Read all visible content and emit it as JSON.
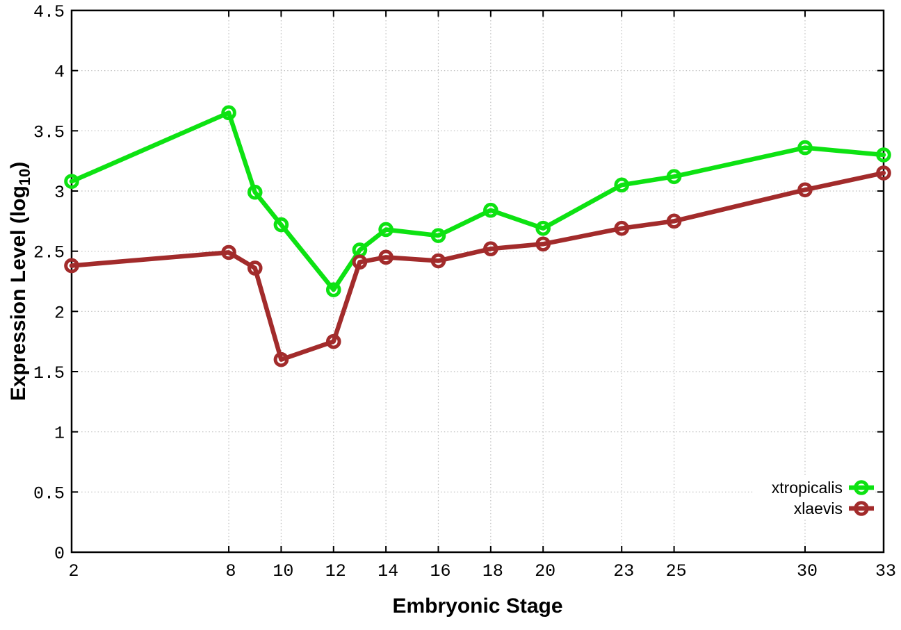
{
  "chart_data": {
    "type": "line",
    "title": "",
    "xlabel": "Embryonic Stage",
    "ylabel": {
      "prefix": "Expression Level (log",
      "subscript": "10",
      "suffix": ")"
    },
    "x": [
      2,
      8,
      9,
      10,
      12,
      13,
      14,
      16,
      18,
      20,
      23,
      25,
      30,
      33
    ],
    "series": [
      {
        "name": "xtropicalis",
        "color": "#0de212",
        "values": [
          3.08,
          3.65,
          2.99,
          2.72,
          2.18,
          2.51,
          2.68,
          2.63,
          2.84,
          2.69,
          3.05,
          3.12,
          3.36,
          3.3
        ]
      },
      {
        "name": "xlaevis",
        "color": "#a22b2b",
        "values": [
          2.38,
          2.49,
          2.36,
          1.6,
          1.75,
          2.41,
          2.45,
          2.42,
          2.52,
          2.56,
          2.69,
          2.75,
          3.01,
          3.15
        ]
      }
    ],
    "xlim": [
      2,
      33
    ],
    "ylim": [
      0,
      4.5
    ],
    "xticks": {
      "values": [
        2,
        8,
        10,
        12,
        14,
        16,
        18,
        20,
        23,
        25,
        30,
        33
      ],
      "labels": [
        "2",
        "8",
        "10",
        "12",
        "14",
        "16",
        "18",
        "20",
        "23",
        "25",
        "30",
        "33"
      ]
    },
    "yticks": {
      "values": [
        0,
        0.5,
        1,
        1.5,
        2,
        2.5,
        3,
        3.5,
        4,
        4.5
      ],
      "labels": [
        "0",
        "0.5",
        "1",
        "1.5",
        "2",
        "2.5",
        "3",
        "3.5",
        "4",
        "4.5"
      ]
    },
    "grid": true,
    "legend_position": "bottom-right",
    "marker": "open-circle"
  },
  "colors": {
    "background": "#ffffff",
    "grid": "#bcbcbc",
    "axis": "#000000",
    "text": "#000000"
  }
}
